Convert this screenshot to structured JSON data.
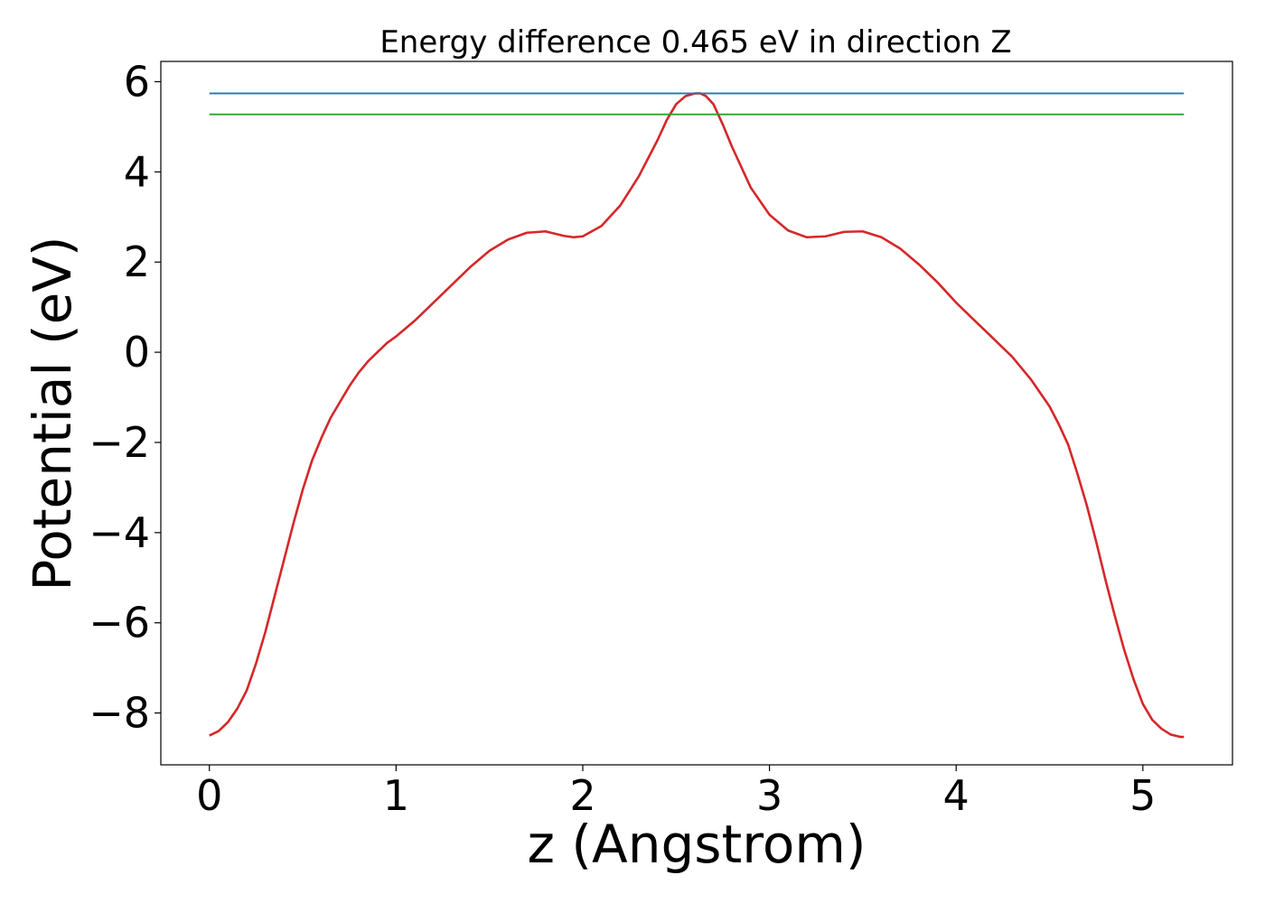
{
  "chart_data": {
    "type": "line",
    "title": "Energy difference 0.465 eV in direction Z",
    "xlabel": "z (Angstrom)",
    "ylabel": "Potential (eV)",
    "xlim": [
      -0.26,
      5.48
    ],
    "ylim": [
      -9.15,
      6.45
    ],
    "xticks": [
      0,
      1,
      2,
      3,
      4,
      5
    ],
    "yticks": [
      -8,
      -6,
      -4,
      -2,
      0,
      2,
      4,
      6
    ],
    "xtick_labels": [
      "0",
      "1",
      "2",
      "3",
      "4",
      "5"
    ],
    "ytick_labels": [
      "−8",
      "−6",
      "−4",
      "−2",
      "0",
      "2",
      "4",
      "6"
    ],
    "grid": false,
    "series": [
      {
        "color": "#d62728",
        "x": [
          0.0,
          0.05,
          0.1,
          0.15,
          0.2,
          0.25,
          0.3,
          0.35,
          0.4,
          0.45,
          0.5,
          0.55,
          0.6,
          0.65,
          0.7,
          0.75,
          0.8,
          0.85,
          0.9,
          0.95,
          1.0,
          1.1,
          1.2,
          1.3,
          1.4,
          1.5,
          1.6,
          1.7,
          1.8,
          1.9,
          1.95,
          2.0,
          2.1,
          2.2,
          2.3,
          2.4,
          2.45,
          2.5,
          2.55,
          2.6,
          2.63,
          2.66,
          2.7,
          2.75,
          2.8,
          2.85,
          2.9,
          3.0,
          3.1,
          3.2,
          3.3,
          3.35,
          3.4,
          3.5,
          3.6,
          3.7,
          3.8,
          3.9,
          4.0,
          4.1,
          4.2,
          4.3,
          4.4,
          4.5,
          4.55,
          4.6,
          4.65,
          4.7,
          4.75,
          4.8,
          4.85,
          4.9,
          4.95,
          5.0,
          5.05,
          5.1,
          5.15,
          5.2,
          5.22
        ],
        "y": [
          -8.5,
          -8.4,
          -8.2,
          -7.9,
          -7.5,
          -6.9,
          -6.2,
          -5.4,
          -4.6,
          -3.8,
          -3.05,
          -2.4,
          -1.9,
          -1.45,
          -1.1,
          -0.75,
          -0.45,
          -0.2,
          0.0,
          0.2,
          0.35,
          0.7,
          1.1,
          1.5,
          1.9,
          2.25,
          2.5,
          2.65,
          2.68,
          2.58,
          2.55,
          2.57,
          2.8,
          3.25,
          3.9,
          4.7,
          5.15,
          5.5,
          5.68,
          5.74,
          5.74,
          5.68,
          5.5,
          5.05,
          4.55,
          4.1,
          3.65,
          3.05,
          2.7,
          2.55,
          2.57,
          2.62,
          2.67,
          2.68,
          2.55,
          2.3,
          1.95,
          1.55,
          1.1,
          0.7,
          0.3,
          -0.1,
          -0.6,
          -1.2,
          -1.6,
          -2.05,
          -2.7,
          -3.4,
          -4.2,
          -5.05,
          -5.85,
          -6.6,
          -7.25,
          -7.8,
          -8.15,
          -8.35,
          -8.48,
          -8.53,
          -8.53
        ]
      },
      {
        "color": "#1f77b4",
        "x": [
          0.0,
          5.22
        ],
        "y": [
          5.74,
          5.74
        ]
      },
      {
        "color": "#2ca02c",
        "x": [
          0.0,
          5.22
        ],
        "y": [
          5.275,
          5.275
        ]
      }
    ]
  }
}
